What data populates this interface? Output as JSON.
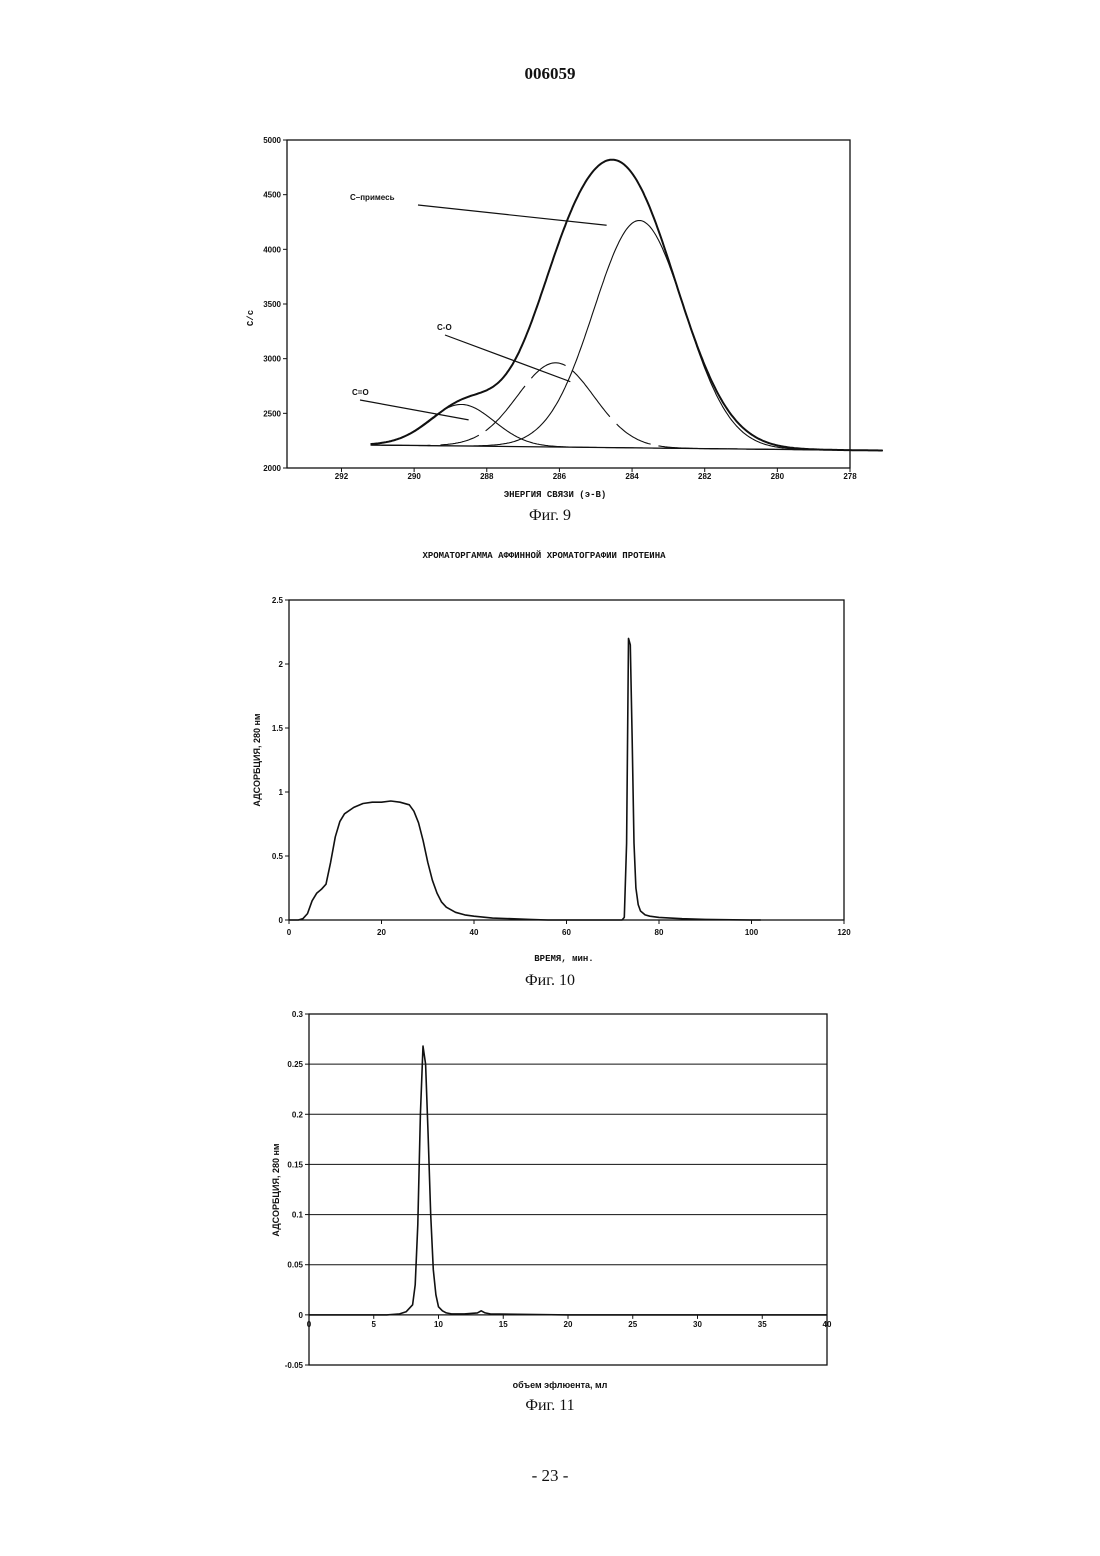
{
  "header": {
    "page_id": "006059"
  },
  "footer": {
    "page_number": "- 23 -"
  },
  "chart_data": [
    {
      "type": "line",
      "caption": "Фиг. 9",
      "title": "",
      "xlabel": "ЭНЕРГИЯ СВЯЗИ (э-В)",
      "ylabel": "С/с",
      "xlim": [
        293.5,
        278
      ],
      "ylim": [
        2000,
        5000
      ],
      "xticks": [
        292,
        290,
        288,
        286,
        284,
        282,
        280,
        278
      ],
      "yticks": [
        2000,
        2500,
        3000,
        3500,
        4000,
        4500,
        5000
      ],
      "grid": false,
      "annotations": [
        {
          "text": "С–примесь",
          "points_to": [
            284.7,
            4220
          ]
        },
        {
          "text": "С-О",
          "points_to": [
            285.7,
            2790
          ]
        },
        {
          "text": "С=О",
          "points_to": [
            288.5,
            2440
          ]
        }
      ],
      "background": {
        "x": [
          291.2,
          277.1
        ],
        "y": [
          2210,
          2160
        ]
      },
      "series": [
        {
          "role": "measured",
          "peaks": [
            {
              "center": 284.2,
              "height": 2410,
              "width": 1.45
            },
            {
              "center": 286.0,
              "height": 760,
              "width": 1.05
            },
            {
              "center": 288.6,
              "height": 380,
              "width": 0.95
            }
          ]
        },
        {
          "role": "component",
          "peaks": [
            {
              "center": 283.8,
              "height": 2080,
              "width": 1.25
            }
          ]
        },
        {
          "role": "component",
          "peaks": [
            {
              "center": 286.1,
              "height": 770,
              "width": 1.05
            }
          ]
        },
        {
          "role": "component",
          "peaks": [
            {
              "center": 288.7,
              "height": 380,
              "width": 0.9
            }
          ]
        }
      ]
    },
    {
      "type": "line",
      "caption": "Фиг. 10",
      "title": "ХРОМАТОРГАММА АФФИННОЙ ХРОМАТОГРАФИИ ПРОТЕИНА",
      "xlabel": "ВРЕМЯ, мин.",
      "ylabel": "АДСОРБЦИЯ, 280 нм",
      "xlim": [
        0,
        120
      ],
      "ylim": [
        0,
        2.5
      ],
      "xticks": [
        0,
        20,
        40,
        60,
        80,
        100,
        120
      ],
      "yticks": [
        0,
        0.5,
        1,
        1.5,
        2,
        2.5
      ],
      "grid": false,
      "series": [
        {
          "x": [
            0,
            2,
            3,
            4,
            5,
            6,
            7,
            8,
            9,
            10,
            11,
            12,
            14,
            16,
            18,
            20,
            22,
            24,
            26,
            27,
            28,
            29,
            30,
            31,
            32,
            33,
            34,
            36,
            38,
            40,
            44,
            48,
            52,
            56,
            60,
            65,
            70,
            72,
            72.5,
            73,
            73.4,
            73.8,
            74.2,
            74.6,
            75,
            75.5,
            76,
            77,
            78,
            80,
            85,
            90,
            100,
            102
          ],
          "y": [
            0,
            0,
            0.01,
            0.05,
            0.15,
            0.21,
            0.24,
            0.28,
            0.45,
            0.65,
            0.77,
            0.83,
            0.88,
            0.91,
            0.92,
            0.92,
            0.93,
            0.92,
            0.9,
            0.85,
            0.76,
            0.62,
            0.45,
            0.31,
            0.21,
            0.14,
            0.1,
            0.06,
            0.04,
            0.03,
            0.015,
            0.01,
            0.005,
            0,
            0,
            0,
            0,
            0,
            0.02,
            0.6,
            2.2,
            2.15,
            1.4,
            0.6,
            0.25,
            0.12,
            0.07,
            0.04,
            0.03,
            0.02,
            0.01,
            0.005,
            0,
            0
          ]
        }
      ]
    },
    {
      "type": "line",
      "caption": "Фиг. 11",
      "title": "",
      "xlabel": "объем эфлюента, мл",
      "ylabel": "АДСОРБЦИЯ, 280 нм",
      "xlim": [
        0,
        40
      ],
      "ylim": [
        -0.05,
        0.3
      ],
      "xticks": [
        0,
        5,
        10,
        15,
        20,
        25,
        30,
        35,
        40
      ],
      "yticks": [
        -0.05,
        0,
        0.05,
        0.1,
        0.15,
        0.2,
        0.25,
        0.3
      ],
      "grid": true,
      "series": [
        {
          "x": [
            0,
            6,
            7,
            7.5,
            8,
            8.2,
            8.4,
            8.6,
            8.8,
            9.0,
            9.2,
            9.4,
            9.6,
            9.8,
            10.0,
            10.3,
            10.6,
            11,
            12,
            13,
            13.3,
            13.6,
            14,
            20,
            30,
            40
          ],
          "y": [
            0,
            0,
            0.001,
            0.003,
            0.01,
            0.03,
            0.09,
            0.2,
            0.268,
            0.25,
            0.18,
            0.1,
            0.045,
            0.02,
            0.008,
            0.004,
            0.002,
            0.001,
            0.001,
            0.002,
            0.004,
            0.002,
            0.001,
            0,
            0,
            0
          ]
        }
      ]
    }
  ]
}
